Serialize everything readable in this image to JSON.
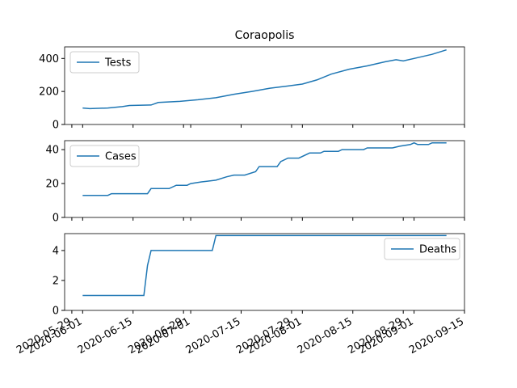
{
  "chart_data": [
    {
      "type": "line",
      "title": "Coraopolis",
      "x": [
        "2020-06-01",
        "2020-06-03",
        "2020-06-08",
        "2020-06-12",
        "2020-06-14",
        "2020-06-20",
        "2020-06-22",
        "2020-06-28",
        "2020-07-03",
        "2020-07-08",
        "2020-07-13",
        "2020-07-18",
        "2020-07-23",
        "2020-07-28",
        "2020-08-01",
        "2020-08-05",
        "2020-08-09",
        "2020-08-14",
        "2020-08-19",
        "2020-08-24",
        "2020-08-27",
        "2020-08-29",
        "2020-09-02",
        "2020-09-06",
        "2020-09-10"
      ],
      "series": [
        {
          "name": "Tests",
          "color": "#1f77b4",
          "values": [
            100,
            96,
            100,
            108,
            115,
            118,
            133,
            140,
            150,
            162,
            183,
            200,
            220,
            233,
            245,
            270,
            305,
            335,
            355,
            380,
            392,
            385,
            405,
            425,
            452
          ]
        }
      ],
      "xlim": [
        "2020-05-27",
        "2020-09-15"
      ],
      "ylim": [
        0,
        470
      ],
      "yticks": [
        0,
        200,
        400
      ],
      "legend": "upper left"
    },
    {
      "type": "line",
      "x": [
        "2020-06-01",
        "2020-06-08",
        "2020-06-09",
        "2020-06-19",
        "2020-06-20",
        "2020-06-25",
        "2020-06-27",
        "2020-06-30",
        "2020-07-01",
        "2020-07-04",
        "2020-07-08",
        "2020-07-11",
        "2020-07-13",
        "2020-07-16",
        "2020-07-19",
        "2020-07-20",
        "2020-07-25",
        "2020-07-26",
        "2020-07-28",
        "2020-07-31",
        "2020-08-03",
        "2020-08-06",
        "2020-08-07",
        "2020-08-11",
        "2020-08-12",
        "2020-08-18",
        "2020-08-19",
        "2020-08-26",
        "2020-08-28",
        "2020-08-31",
        "2020-09-01",
        "2020-09-02",
        "2020-09-05",
        "2020-09-06",
        "2020-09-10"
      ],
      "series": [
        {
          "name": "Cases",
          "color": "#1f77b4",
          "values": [
            13,
            13,
            14,
            14,
            17,
            17,
            19,
            19,
            20,
            21,
            22,
            24,
            25,
            25,
            27,
            30,
            30,
            33,
            35,
            35,
            38,
            38,
            39,
            39,
            40,
            40,
            41,
            41,
            42,
            43,
            44,
            43,
            43,
            44,
            44
          ]
        }
      ],
      "xlim": [
        "2020-05-27",
        "2020-09-15"
      ],
      "ylim": [
        0,
        45.3
      ],
      "yticks": [
        0,
        20,
        40
      ],
      "legend": "upper left"
    },
    {
      "type": "line",
      "x": [
        "2020-06-01",
        "2020-06-18",
        "2020-06-19",
        "2020-06-20",
        "2020-07-07",
        "2020-07-08",
        "2020-09-10"
      ],
      "series": [
        {
          "name": "Deaths",
          "color": "#1f77b4",
          "values": [
            1,
            1,
            3,
            4,
            4,
            5,
            5
          ]
        }
      ],
      "xlim": [
        "2020-05-27",
        "2020-09-15"
      ],
      "ylim": [
        0,
        5.13
      ],
      "yticks": [
        0,
        2,
        4
      ],
      "legend": "upper right",
      "xticks": [
        "2020-05-29",
        "2020-06-01",
        "2020-06-15",
        "2020-06-29",
        "2020-07-01",
        "2020-07-15",
        "2020-07-29",
        "2020-08-01",
        "2020-08-15",
        "2020-08-29",
        "2020-09-01",
        "2020-09-15"
      ]
    }
  ]
}
